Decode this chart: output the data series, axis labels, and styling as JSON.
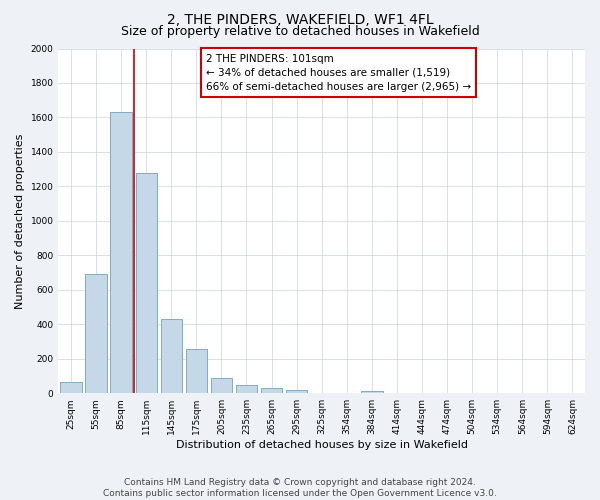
{
  "title": "2, THE PINDERS, WAKEFIELD, WF1 4FL",
  "subtitle": "Size of property relative to detached houses in Wakefield",
  "xlabel": "Distribution of detached houses by size in Wakefield",
  "ylabel": "Number of detached properties",
  "bin_labels": [
    "25sqm",
    "55sqm",
    "85sqm",
    "115sqm",
    "145sqm",
    "175sqm",
    "205sqm",
    "235sqm",
    "265sqm",
    "295sqm",
    "325sqm",
    "354sqm",
    "384sqm",
    "414sqm",
    "444sqm",
    "474sqm",
    "504sqm",
    "534sqm",
    "564sqm",
    "594sqm",
    "624sqm"
  ],
  "bar_values": [
    65,
    690,
    1630,
    1280,
    430,
    255,
    90,
    50,
    30,
    20,
    0,
    0,
    15,
    0,
    0,
    0,
    0,
    0,
    0,
    0,
    0
  ],
  "bar_color": "#c5d8e8",
  "bar_edge_color": "#7eacc4",
  "vline_color": "#cc0000",
  "annotation_line1": "2 THE PINDERS: 101sqm",
  "annotation_line2": "← 34% of detached houses are smaller (1,519)",
  "annotation_line3": "66% of semi-detached houses are larger (2,965) →",
  "annotation_box_color": "#ffffff",
  "annotation_box_edge": "#cc0000",
  "ylim": [
    0,
    2000
  ],
  "yticks": [
    0,
    200,
    400,
    600,
    800,
    1000,
    1200,
    1400,
    1600,
    1800,
    2000
  ],
  "footer_text": "Contains HM Land Registry data © Crown copyright and database right 2024.\nContains public sector information licensed under the Open Government Licence v3.0.",
  "background_color": "#eef2f7",
  "plot_background": "#ffffff",
  "title_fontsize": 10,
  "subtitle_fontsize": 9,
  "axis_label_fontsize": 8,
  "tick_fontsize": 6.5,
  "annotation_fontsize": 7.5,
  "footer_fontsize": 6.5
}
